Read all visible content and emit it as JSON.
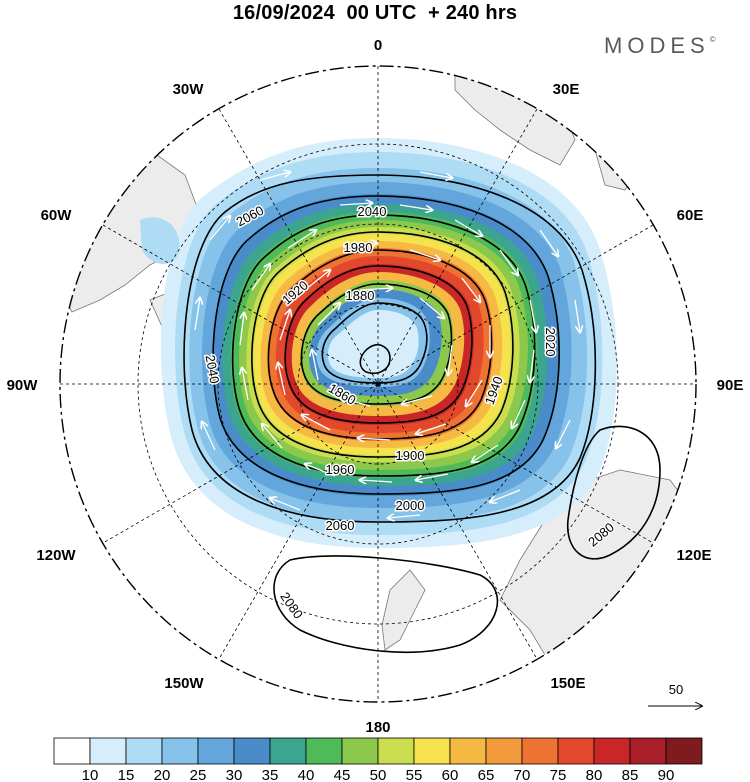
{
  "title": "16/09/2024  00 UTC  + 240 hrs",
  "brand": "MODES",
  "brand_mark": "©",
  "longitude_labels": [
    "0",
    "30E",
    "60E",
    "90E",
    "120E",
    "150E",
    "180",
    "150W",
    "120W",
    "90W",
    "60W",
    "30W"
  ],
  "contour_labels": [
    "2040",
    "2060",
    "1980",
    "1920",
    "1880",
    "2020",
    "2000",
    "1960",
    "1860",
    "1940",
    "1900",
    "2080"
  ],
  "vector_reference": {
    "label": "50"
  },
  "colorbar": {
    "labels": [
      "10",
      "15",
      "20",
      "25",
      "30",
      "35",
      "40",
      "45",
      "50",
      "55",
      "60",
      "65",
      "70",
      "75",
      "80",
      "85",
      "90"
    ],
    "colors": [
      "#ffffff",
      "#d6eefb",
      "#aedcf5",
      "#86c2ea",
      "#62a6db",
      "#4a8bc9",
      "#3ca58f",
      "#4fba5a",
      "#8cc84b",
      "#c9dd4f",
      "#f6e24c",
      "#f5b944",
      "#f29a3c",
      "#ee7232",
      "#e2482b",
      "#c92727",
      "#a91e2b",
      "#7f1a1f"
    ]
  }
}
